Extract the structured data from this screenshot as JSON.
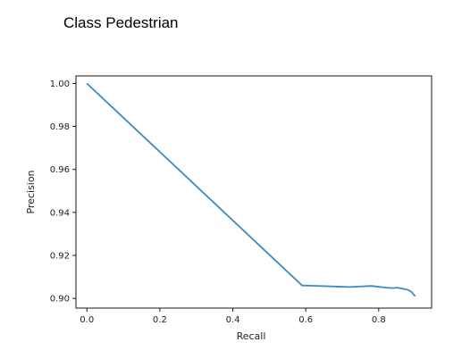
{
  "page": {
    "title": "Class Pedestrian"
  },
  "chart_data": {
    "type": "line",
    "title": "",
    "xlabel": "Recall",
    "ylabel": "Precision",
    "xlim": [
      -0.03,
      0.945
    ],
    "ylim": [
      0.8955,
      1.0035
    ],
    "xticks": [
      0.0,
      0.2,
      0.4,
      0.6,
      0.8
    ],
    "xtick_labels": [
      "0.0",
      "0.2",
      "0.4",
      "0.6",
      "0.8"
    ],
    "yticks": [
      0.9,
      0.92,
      0.94,
      0.96,
      0.98,
      1.0
    ],
    "ytick_labels": [
      "0.90",
      "0.92",
      "0.94",
      "0.96",
      "0.98",
      "1.00"
    ],
    "grid": false,
    "series": [
      {
        "color": "#3b8bc2",
        "x": [
          0.0,
          0.59,
          0.62,
          0.72,
          0.78,
          0.82,
          0.84,
          0.85,
          0.865,
          0.88,
          0.89,
          0.895,
          0.9
        ],
        "y": [
          1.0,
          0.906,
          0.9059,
          0.9053,
          0.9058,
          0.905,
          0.9048,
          0.905,
          0.9045,
          0.904,
          0.903,
          0.902,
          0.901
        ]
      }
    ]
  }
}
